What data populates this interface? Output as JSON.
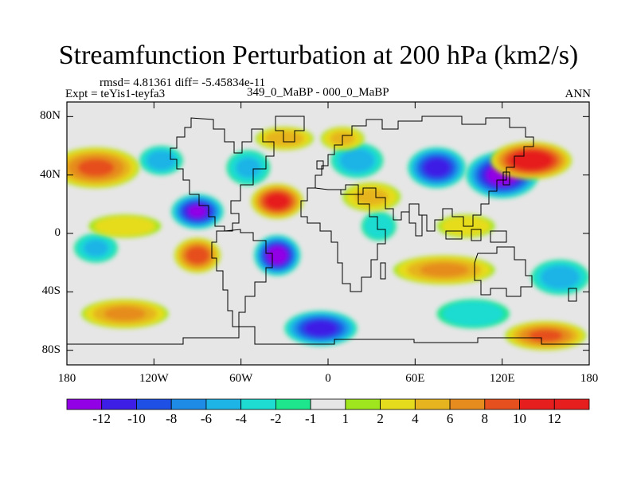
{
  "chart_data": {
    "type": "heatmap",
    "title": "Streamfunction Perturbation at 200 hPa (km2/s)",
    "subtitles": {
      "stats": "rmsd= 4.81361  diff= -5.45834e-11",
      "left": "Expt = teYis1-teyfa3",
      "center": "349_0_MaBP - 000_0_MaBP",
      "right": "ANN"
    },
    "x_axis": {
      "range": [
        -180,
        180
      ],
      "ticks": [
        -180,
        -120,
        -60,
        0,
        60,
        120,
        180
      ],
      "tick_labels": [
        "180",
        "120W",
        "60W",
        "0",
        "60E",
        "120E",
        "180"
      ]
    },
    "y_axis": {
      "range": [
        -90,
        90
      ],
      "ticks": [
        80,
        40,
        0,
        -40,
        -80
      ],
      "tick_labels": [
        "80N",
        "40N",
        "0",
        "40S",
        "80S"
      ]
    },
    "colorbar": {
      "levels": [
        -12,
        -10,
        -8,
        -6,
        -4,
        -2,
        -1,
        1,
        2,
        4,
        6,
        8,
        10,
        12
      ],
      "labels": [
        "-12",
        "-10",
        "-8",
        "-6",
        "-4",
        "-2",
        "-1",
        "1",
        "2",
        "4",
        "6",
        "8",
        "10",
        "12"
      ],
      "colors": [
        "#9200e6",
        "#3d1ee6",
        "#1e50e6",
        "#1e8ce6",
        "#1eb4e6",
        "#1edcd2",
        "#1ee68c",
        "#e6e6e6",
        "#a0e61e",
        "#e6dc1e",
        "#e6b41e",
        "#e68c1e",
        "#e6501e",
        "#e61e1e"
      ]
    },
    "anomaly_centers": [
      {
        "lon": 120,
        "lat": 40,
        "value": -13,
        "rx": 25,
        "ry": 16
      },
      {
        "lon": 75,
        "lat": 45,
        "value": -11,
        "rx": 20,
        "ry": 14
      },
      {
        "lon": -90,
        "lat": 15,
        "value": -12,
        "rx": 18,
        "ry": 12
      },
      {
        "lon": -35,
        "lat": -15,
        "value": -13,
        "rx": 16,
        "ry": 14
      },
      {
        "lon": -5,
        "lat": -65,
        "value": -11,
        "rx": 25,
        "ry": 12
      },
      {
        "lon": -115,
        "lat": 50,
        "value": -5,
        "rx": 15,
        "ry": 10
      },
      {
        "lon": 20,
        "lat": 50,
        "value": -5,
        "rx": 18,
        "ry": 12
      },
      {
        "lon": -55,
        "lat": 45,
        "value": -4,
        "rx": 15,
        "ry": 12
      },
      {
        "lon": 160,
        "lat": -30,
        "value": -5,
        "rx": 20,
        "ry": 12
      },
      {
        "lon": 100,
        "lat": -55,
        "value": -3,
        "rx": 25,
        "ry": 10
      },
      {
        "lon": 35,
        "lat": 5,
        "value": -3,
        "rx": 12,
        "ry": 10
      },
      {
        "lon": -160,
        "lat": -10,
        "value": -4,
        "rx": 15,
        "ry": 10
      },
      {
        "lon": 140,
        "lat": 50,
        "value": 12,
        "rx": 28,
        "ry": 13
      },
      {
        "lon": -160,
        "lat": 45,
        "value": 8,
        "rx": 30,
        "ry": 14
      },
      {
        "lon": -35,
        "lat": 22,
        "value": 11,
        "rx": 18,
        "ry": 12
      },
      {
        "lon": -90,
        "lat": -15,
        "value": 9,
        "rx": 16,
        "ry": 12
      },
      {
        "lon": 150,
        "lat": -70,
        "value": 8,
        "rx": 28,
        "ry": 10
      },
      {
        "lon": -140,
        "lat": -55,
        "value": 6,
        "rx": 30,
        "ry": 10
      },
      {
        "lon": 80,
        "lat": -25,
        "value": 6,
        "rx": 35,
        "ry": 10
      },
      {
        "lon": 30,
        "lat": 25,
        "value": 4,
        "rx": 20,
        "ry": 10
      },
      {
        "lon": 95,
        "lat": 5,
        "value": 3,
        "rx": 20,
        "ry": 8
      },
      {
        "lon": -140,
        "lat": 5,
        "value": 3,
        "rx": 25,
        "ry": 8
      },
      {
        "lon": -30,
        "lat": 65,
        "value": 5,
        "rx": 20,
        "ry": 8
      },
      {
        "lon": 10,
        "lat": 65,
        "value": 4,
        "rx": 15,
        "ry": 8
      }
    ]
  }
}
